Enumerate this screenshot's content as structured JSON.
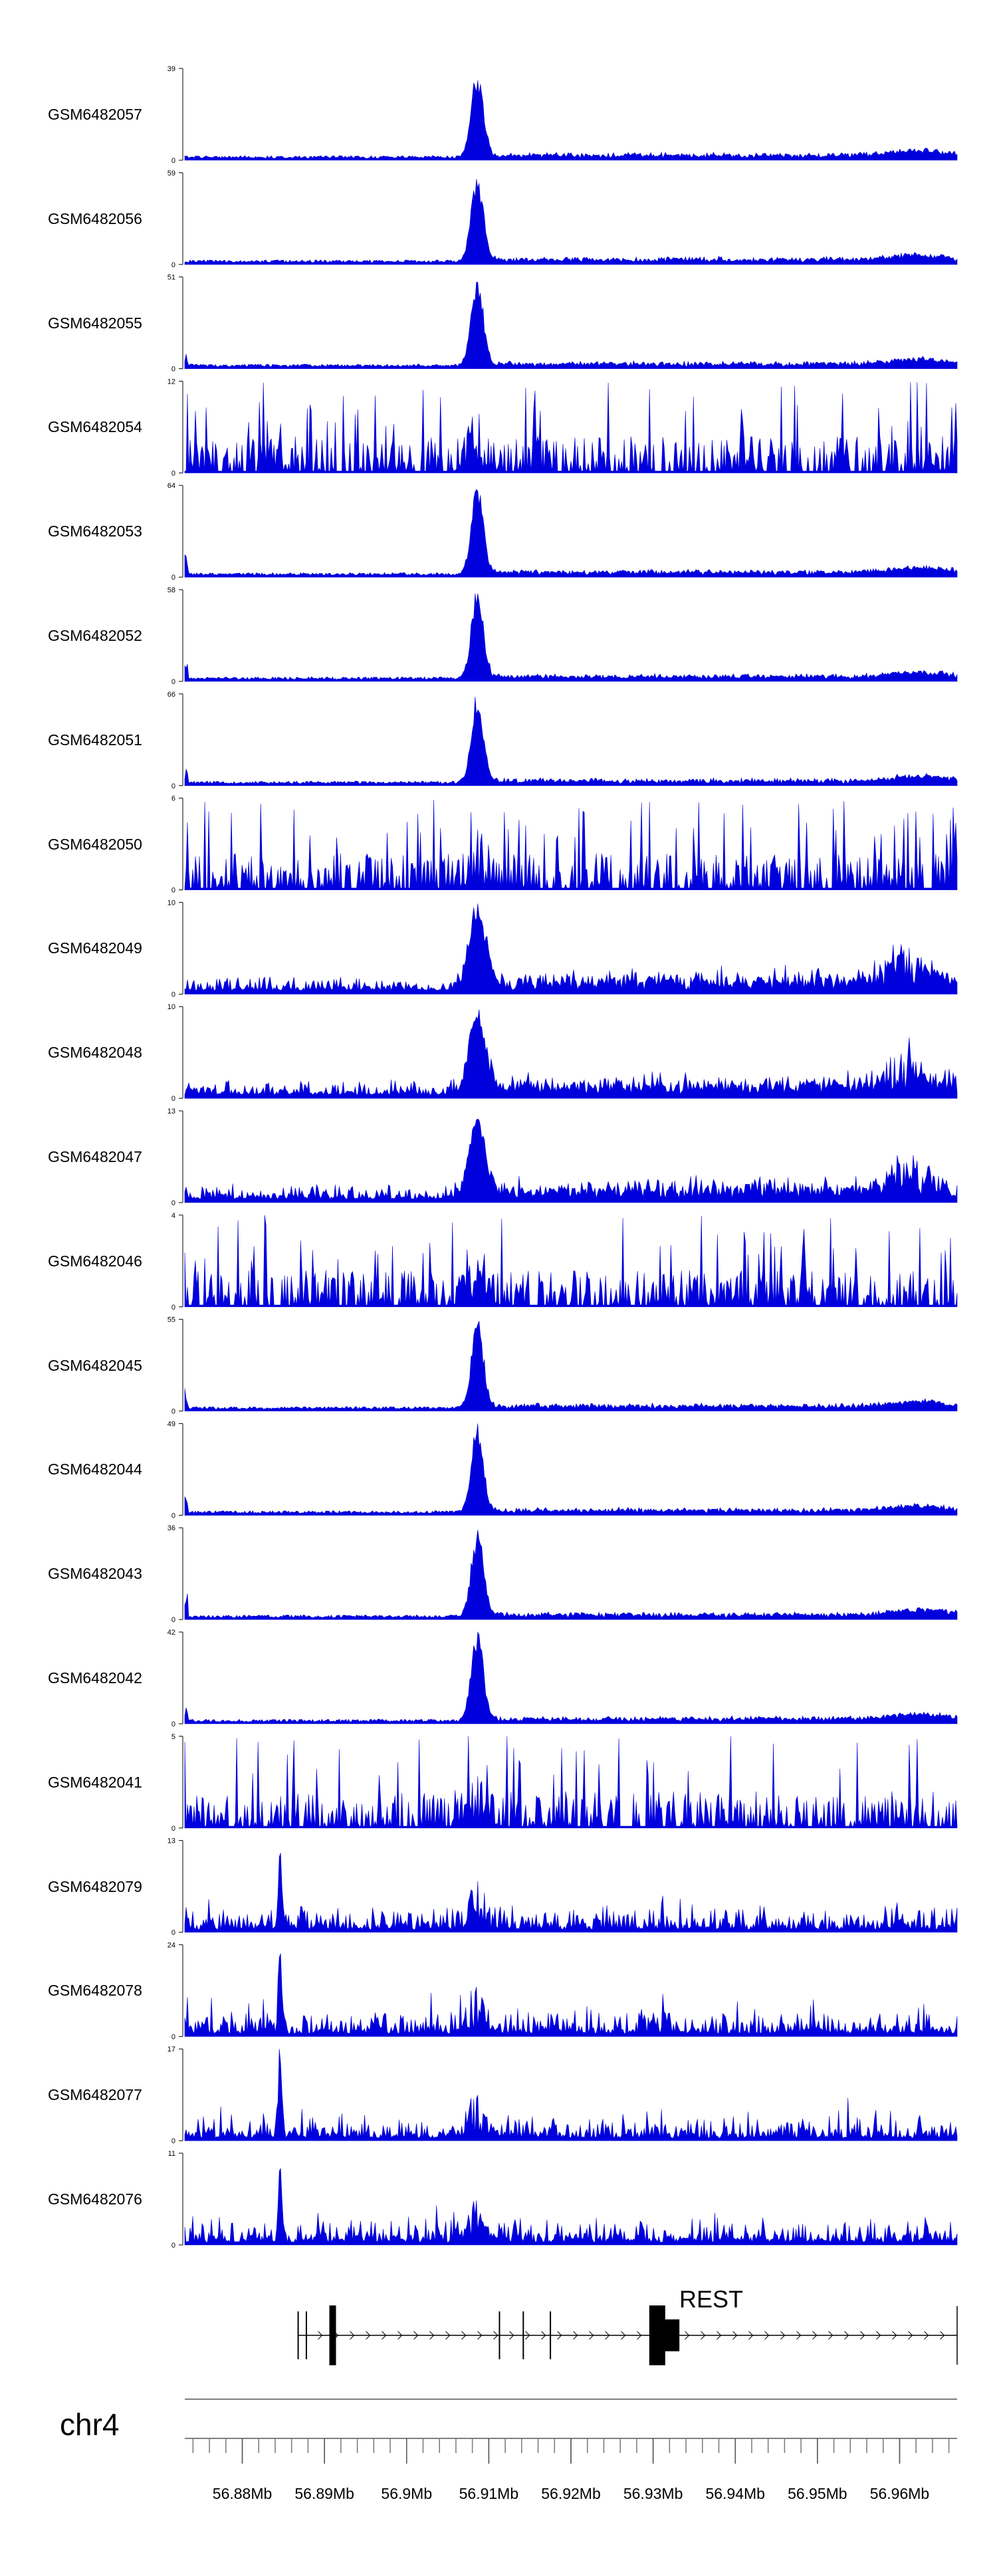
{
  "chart_data": {
    "type": "area",
    "title": "",
    "xlabel": "",
    "ylabel": "",
    "region": {
      "chrom": "chr4",
      "start_mb": 56.873,
      "end_mb": 56.967
    },
    "color": "#0000dd",
    "gene": {
      "name": "REST",
      "exon_positions_mb": [
        56.8868,
        56.8878,
        56.891,
        56.9113,
        56.9142,
        56.9175,
        56.9305
      ],
      "thick_block_mb": [
        56.9303,
        56.9332
      ]
    },
    "axis": {
      "chrom_label": "chr4",
      "tick_labels": [
        "56.88Mb",
        "56.89Mb",
        "56.9Mb",
        "56.91Mb",
        "56.92Mb",
        "56.93Mb",
        "56.94Mb",
        "56.95Mb",
        "56.96Mb"
      ],
      "tick_values_mb": [
        56.88,
        56.89,
        56.9,
        56.91,
        56.92,
        56.93,
        56.94,
        56.95,
        56.96
      ]
    },
    "series": [
      {
        "name": "GSM6482057",
        "ymin": "0",
        "ymax": "39",
        "profile": "peak"
      },
      {
        "name": "GSM6482056",
        "ymin": "0",
        "ymax": "59",
        "profile": "peak"
      },
      {
        "name": "GSM6482055",
        "ymin": "0",
        "ymax": "51",
        "profile": "peak"
      },
      {
        "name": "GSM6482054",
        "ymin": "0",
        "ymax": "12",
        "profile": "noisy"
      },
      {
        "name": "GSM6482053",
        "ymin": "0",
        "ymax": "64",
        "profile": "peak"
      },
      {
        "name": "GSM6482052",
        "ymin": "0",
        "ymax": "58",
        "profile": "peak"
      },
      {
        "name": "GSM6482051",
        "ymin": "0",
        "ymax": "66",
        "profile": "peak"
      },
      {
        "name": "GSM6482050",
        "ymin": "0",
        "ymax": "6",
        "profile": "noisy"
      },
      {
        "name": "GSM6482049",
        "ymin": "0",
        "ymax": "10",
        "profile": "broad"
      },
      {
        "name": "GSM6482048",
        "ymin": "0",
        "ymax": "10",
        "profile": "broad"
      },
      {
        "name": "GSM6482047",
        "ymin": "0",
        "ymax": "13",
        "profile": "broad"
      },
      {
        "name": "GSM6482046",
        "ymin": "0",
        "ymax": "4",
        "profile": "noisy"
      },
      {
        "name": "GSM6482045",
        "ymin": "0",
        "ymax": "55",
        "profile": "peak"
      },
      {
        "name": "GSM6482044",
        "ymin": "0",
        "ymax": "49",
        "profile": "peak"
      },
      {
        "name": "GSM6482043",
        "ymin": "0",
        "ymax": "36",
        "profile": "peak"
      },
      {
        "name": "GSM6482042",
        "ymin": "0",
        "ymax": "42",
        "profile": "peak"
      },
      {
        "name": "GSM6482041",
        "ymin": "0",
        "ymax": "5",
        "profile": "noisy"
      },
      {
        "name": "GSM6482079",
        "ymin": "0",
        "ymax": "13",
        "profile": "spiky"
      },
      {
        "name": "GSM6482078",
        "ymin": "0",
        "ymax": "24",
        "profile": "spiky"
      },
      {
        "name": "GSM6482077",
        "ymin": "0",
        "ymax": "17",
        "profile": "spiky"
      },
      {
        "name": "GSM6482076",
        "ymin": "0",
        "ymax": "11",
        "profile": "spiky"
      }
    ]
  }
}
